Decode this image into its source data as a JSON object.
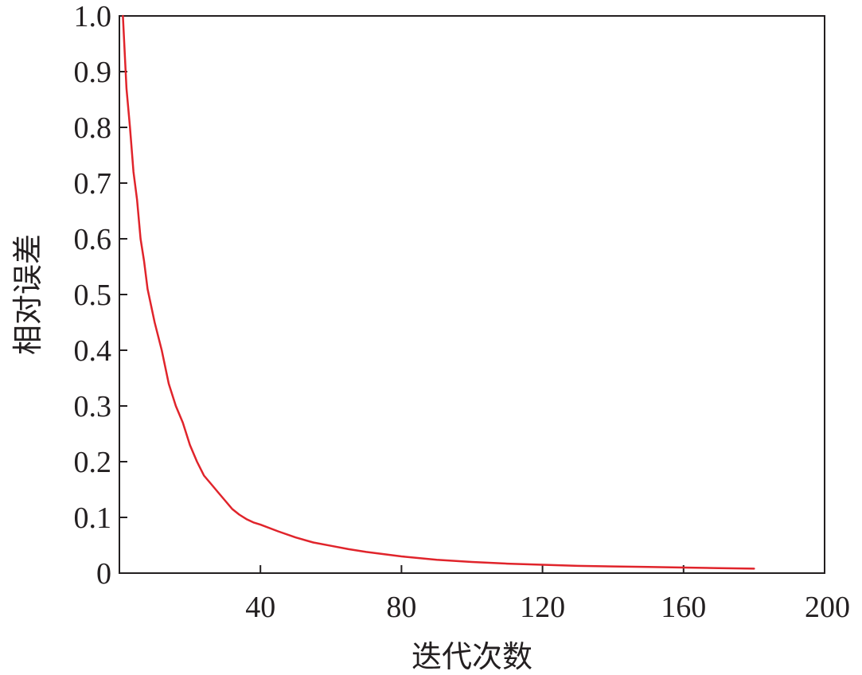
{
  "chart_data": {
    "type": "line",
    "title": "",
    "xlabel": "迭代次数",
    "ylabel": "相对误差",
    "xlim": [
      0,
      200
    ],
    "ylim": [
      0,
      1.0
    ],
    "x_ticks": [
      40,
      80,
      120,
      160,
      200
    ],
    "x_tick_labels": [
      "40",
      "80",
      "120",
      "160",
      "200"
    ],
    "y_ticks": [
      0,
      0.1,
      0.2,
      0.3,
      0.4,
      0.5,
      0.6,
      0.7,
      0.8,
      0.9,
      1.0
    ],
    "y_tick_labels": [
      "0",
      "0.1",
      "0.2",
      "0.3",
      "0.4",
      "0.5",
      "0.6",
      "0.7",
      "0.8",
      "0.9",
      "1.0"
    ],
    "grid": false,
    "legend": "none",
    "series": [
      {
        "color": "#e0242b",
        "x": [
          1,
          2,
          3,
          4,
          5,
          6,
          7,
          8,
          10,
          12,
          14,
          16,
          18,
          20,
          22,
          24,
          26,
          28,
          30,
          32,
          34,
          36,
          38,
          40,
          45,
          50,
          55,
          60,
          65,
          70,
          80,
          90,
          100,
          110,
          120,
          130,
          140,
          150,
          160,
          170,
          180
        ],
        "y": [
          1.0,
          0.87,
          0.8,
          0.72,
          0.67,
          0.6,
          0.56,
          0.51,
          0.45,
          0.4,
          0.34,
          0.3,
          0.27,
          0.23,
          0.2,
          0.175,
          0.16,
          0.145,
          0.13,
          0.115,
          0.105,
          0.097,
          0.091,
          0.087,
          0.075,
          0.064,
          0.055,
          0.049,
          0.043,
          0.038,
          0.03,
          0.024,
          0.02,
          0.017,
          0.015,
          0.013,
          0.012,
          0.011,
          0.01,
          0.009,
          0.008
        ]
      }
    ]
  }
}
